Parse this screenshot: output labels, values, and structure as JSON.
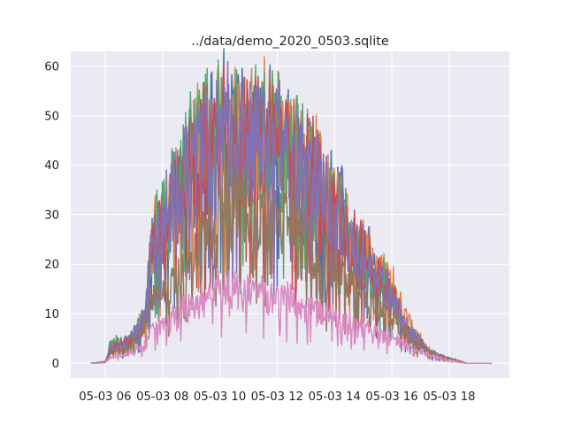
{
  "chart_data": {
    "type": "line",
    "title": "../data/demo_2020_0503.sqlite",
    "xlabel": "",
    "ylabel": "",
    "x_unit": "hour of 2020-05-03",
    "xlim": [
      4.8,
      20.1
    ],
    "ylim": [
      -3,
      63
    ],
    "grid": true,
    "background": "#eaeaf2",
    "x_ticks": [
      {
        "value": 6,
        "label": "05-03 06"
      },
      {
        "value": 8,
        "label": "05-03 08"
      },
      {
        "value": 10,
        "label": "05-03 10"
      },
      {
        "value": 12,
        "label": "05-03 12"
      },
      {
        "value": 14,
        "label": "05-03 14"
      },
      {
        "value": 16,
        "label": "05-03 16"
      },
      {
        "value": 18,
        "label": "05-03 18"
      }
    ],
    "y_ticks": [
      0,
      10,
      20,
      30,
      40,
      50,
      60
    ],
    "series": [
      {
        "color": "#4c72b0",
        "envelope": [
          [
            5.5,
            0
          ],
          [
            6,
            0.3
          ],
          [
            6.1,
            2
          ],
          [
            6.2,
            4.5
          ],
          [
            6.6,
            4.8
          ],
          [
            7,
            7
          ],
          [
            7.4,
            12
          ],
          [
            7.6,
            29
          ],
          [
            7.8,
            35
          ],
          [
            8.1,
            37
          ],
          [
            8.4,
            44
          ],
          [
            8.8,
            50
          ],
          [
            9.2,
            54
          ],
          [
            9.6,
            57
          ],
          [
            9.8,
            58
          ],
          [
            10.2,
            60
          ],
          [
            10.6,
            58
          ],
          [
            11.2,
            58
          ],
          [
            11.6,
            57
          ],
          [
            12,
            58
          ],
          [
            12.5,
            55
          ],
          [
            12.9,
            53
          ],
          [
            13.4,
            46
          ],
          [
            13.8,
            41
          ],
          [
            14.2,
            40
          ],
          [
            14.6,
            31
          ],
          [
            15,
            29
          ],
          [
            15.4,
            23
          ],
          [
            15.8,
            20
          ],
          [
            16,
            17
          ],
          [
            16.4,
            10
          ],
          [
            16.8,
            7
          ],
          [
            17.2,
            3.5
          ],
          [
            17.6,
            2
          ],
          [
            18,
            1.1
          ],
          [
            18.4,
            0.4
          ],
          [
            18.6,
            0
          ],
          [
            19,
            0
          ],
          [
            19.5,
            0
          ]
        ],
        "floor": 0.45,
        "jitter": 0.15,
        "seed": 11
      },
      {
        "color": "#dd8452",
        "envelope": [
          [
            5.5,
            0
          ],
          [
            6,
            0.3
          ],
          [
            6.1,
            2
          ],
          [
            6.2,
            4.2
          ],
          [
            6.6,
            4.6
          ],
          [
            7,
            7
          ],
          [
            7.4,
            12
          ],
          [
            7.6,
            30
          ],
          [
            7.8,
            34
          ],
          [
            8.1,
            36
          ],
          [
            8.4,
            43
          ],
          [
            8.8,
            49
          ],
          [
            9.2,
            55
          ],
          [
            9.6,
            58
          ],
          [
            9.8,
            59
          ],
          [
            10.2,
            60
          ],
          [
            10.6,
            59
          ],
          [
            11.2,
            58
          ],
          [
            11.6,
            60
          ],
          [
            12,
            58
          ],
          [
            12.5,
            55
          ],
          [
            12.9,
            51
          ],
          [
            13.4,
            49
          ],
          [
            13.8,
            42
          ],
          [
            14.2,
            40
          ],
          [
            14.6,
            32
          ],
          [
            15,
            30
          ],
          [
            15.4,
            24
          ],
          [
            15.8,
            22
          ],
          [
            16,
            21
          ],
          [
            16.4,
            13
          ],
          [
            16.8,
            8
          ],
          [
            17.2,
            3.8
          ],
          [
            17.6,
            2.2
          ],
          [
            18,
            1.2
          ],
          [
            18.4,
            0.5
          ],
          [
            18.6,
            0
          ],
          [
            19,
            0
          ],
          [
            19.5,
            0
          ]
        ],
        "floor": 0.5,
        "jitter": 0.13,
        "seed": 23
      },
      {
        "color": "#55a868",
        "envelope": [
          [
            5.5,
            0
          ],
          [
            6,
            0.4
          ],
          [
            6.1,
            2.2
          ],
          [
            6.2,
            6
          ],
          [
            6.6,
            5
          ],
          [
            7,
            7
          ],
          [
            7.4,
            12
          ],
          [
            7.6,
            31
          ],
          [
            7.8,
            35
          ],
          [
            8.1,
            36
          ],
          [
            8.4,
            45
          ],
          [
            8.8,
            51
          ],
          [
            9.2,
            56
          ],
          [
            9.6,
            60
          ],
          [
            9.8,
            60
          ],
          [
            10.2,
            59
          ],
          [
            10.6,
            58
          ],
          [
            11.2,
            57
          ],
          [
            11.6,
            58
          ],
          [
            12,
            57
          ],
          [
            12.5,
            54
          ],
          [
            12.9,
            52
          ],
          [
            13.4,
            46
          ],
          [
            13.8,
            40
          ],
          [
            14.2,
            39
          ],
          [
            14.6,
            30
          ],
          [
            15,
            28
          ],
          [
            15.4,
            23
          ],
          [
            15.8,
            20
          ],
          [
            16,
            17
          ],
          [
            16.4,
            10
          ],
          [
            16.8,
            7
          ],
          [
            17.2,
            3.5
          ],
          [
            17.6,
            2
          ],
          [
            18,
            1.1
          ],
          [
            18.4,
            0.4
          ],
          [
            18.6,
            0
          ],
          [
            19,
            0
          ],
          [
            19.5,
            0
          ]
        ],
        "floor": 0.45,
        "jitter": 0.15,
        "seed": 37
      },
      {
        "color": "#c44e52",
        "envelope": [
          [
            5.5,
            0
          ],
          [
            6,
            0.3
          ],
          [
            6.1,
            2
          ],
          [
            6.2,
            4.4
          ],
          [
            6.6,
            4.7
          ],
          [
            7,
            7
          ],
          [
            7.4,
            11
          ],
          [
            7.6,
            28
          ],
          [
            7.8,
            34
          ],
          [
            8.1,
            35
          ],
          [
            8.4,
            43
          ],
          [
            8.8,
            49
          ],
          [
            9.2,
            54
          ],
          [
            9.6,
            57
          ],
          [
            9.8,
            58
          ],
          [
            10.2,
            59
          ],
          [
            10.6,
            57
          ],
          [
            11.2,
            57
          ],
          [
            11.6,
            56
          ],
          [
            12,
            57
          ],
          [
            12.5,
            54
          ],
          [
            12.9,
            51
          ],
          [
            13.4,
            45
          ],
          [
            13.8,
            40
          ],
          [
            14.2,
            38
          ],
          [
            14.6,
            30
          ],
          [
            15,
            28
          ],
          [
            15.4,
            22
          ],
          [
            15.8,
            20
          ],
          [
            16,
            17
          ],
          [
            16.4,
            10
          ],
          [
            16.8,
            7
          ],
          [
            17.2,
            3.5
          ],
          [
            17.6,
            2
          ],
          [
            18,
            1.1
          ],
          [
            18.4,
            0.4
          ],
          [
            18.6,
            0
          ],
          [
            19,
            0
          ],
          [
            19.5,
            0
          ]
        ],
        "floor": 0.45,
        "jitter": 0.15,
        "seed": 41
      },
      {
        "color": "#8172b3",
        "envelope": [
          [
            5.5,
            0
          ],
          [
            6,
            0.3
          ],
          [
            6.1,
            2
          ],
          [
            6.2,
            4.3
          ],
          [
            6.6,
            4.6
          ],
          [
            7,
            7
          ],
          [
            7.4,
            12
          ],
          [
            7.6,
            29
          ],
          [
            7.8,
            36
          ],
          [
            8.1,
            37
          ],
          [
            8.4,
            44
          ],
          [
            8.8,
            50
          ],
          [
            9.2,
            55
          ],
          [
            9.6,
            57
          ],
          [
            9.8,
            58
          ],
          [
            10.2,
            60
          ],
          [
            10.6,
            58
          ],
          [
            11.2,
            57
          ],
          [
            11.6,
            57
          ],
          [
            12,
            57
          ],
          [
            12.5,
            55
          ],
          [
            12.9,
            52
          ],
          [
            13.4,
            46
          ],
          [
            13.8,
            41
          ],
          [
            14.2,
            39
          ],
          [
            14.6,
            30
          ],
          [
            15,
            28
          ],
          [
            15.4,
            22
          ],
          [
            15.8,
            20
          ],
          [
            16,
            17
          ],
          [
            16.4,
            10
          ],
          [
            16.8,
            7
          ],
          [
            17.2,
            3.5
          ],
          [
            17.6,
            2
          ],
          [
            18,
            1.1
          ],
          [
            18.4,
            0.4
          ],
          [
            18.6,
            0
          ],
          [
            19,
            0
          ],
          [
            19.5,
            0
          ]
        ],
        "floor": 0.45,
        "jitter": 0.15,
        "seed": 53
      },
      {
        "color": "#937860",
        "envelope": [
          [
            5.5,
            0
          ],
          [
            6,
            0.2
          ],
          [
            6.1,
            1.5
          ],
          [
            6.2,
            2.8
          ],
          [
            6.6,
            3.2
          ],
          [
            7,
            5
          ],
          [
            7.4,
            9
          ],
          [
            7.6,
            16
          ],
          [
            7.8,
            16
          ],
          [
            8.1,
            18
          ],
          [
            8.4,
            22
          ],
          [
            8.8,
            25
          ],
          [
            9.2,
            30
          ],
          [
            9.6,
            33
          ],
          [
            9.8,
            36
          ],
          [
            10.2,
            40
          ],
          [
            10.6,
            39
          ],
          [
            11.2,
            37
          ],
          [
            11.6,
            36
          ],
          [
            12,
            35
          ],
          [
            12.5,
            34
          ],
          [
            12.9,
            30
          ],
          [
            13.4,
            28
          ],
          [
            13.8,
            24
          ],
          [
            14.2,
            22
          ],
          [
            14.6,
            19
          ],
          [
            15,
            18
          ],
          [
            15.4,
            15
          ],
          [
            15.8,
            13
          ],
          [
            16,
            12
          ],
          [
            16.4,
            8
          ],
          [
            16.8,
            5
          ],
          [
            17.2,
            3.2
          ],
          [
            17.6,
            2
          ],
          [
            18,
            1.2
          ],
          [
            18.4,
            0.5
          ],
          [
            18.6,
            0
          ],
          [
            19,
            0
          ],
          [
            19.5,
            0
          ]
        ],
        "floor": 0.55,
        "jitter": 0.12,
        "seed": 67
      },
      {
        "color": "#da8bc3",
        "envelope": [
          [
            5.5,
            0
          ],
          [
            6,
            0.1
          ],
          [
            6.1,
            1
          ],
          [
            6.2,
            1.5
          ],
          [
            6.6,
            2
          ],
          [
            7,
            3
          ],
          [
            7.4,
            5
          ],
          [
            7.6,
            8
          ],
          [
            7.8,
            9
          ],
          [
            8.1,
            10
          ],
          [
            8.4,
            12
          ],
          [
            8.8,
            14
          ],
          [
            9.2,
            15
          ],
          [
            9.6,
            17
          ],
          [
            9.8,
            18
          ],
          [
            10.2,
            19
          ],
          [
            10.6,
            18
          ],
          [
            11.2,
            18
          ],
          [
            11.6,
            17
          ],
          [
            12,
            16
          ],
          [
            12.5,
            16
          ],
          [
            12.9,
            14
          ],
          [
            13.4,
            13
          ],
          [
            13.8,
            12
          ],
          [
            14.2,
            11
          ],
          [
            14.6,
            10
          ],
          [
            15,
            9
          ],
          [
            15.4,
            8
          ],
          [
            15.8,
            7
          ],
          [
            16,
            6.5
          ],
          [
            16.4,
            5
          ],
          [
            16.8,
            3.5
          ],
          [
            17.2,
            2.5
          ],
          [
            17.6,
            1.5
          ],
          [
            18,
            0.8
          ],
          [
            18.4,
            0.2
          ],
          [
            18.6,
            0
          ],
          [
            19,
            0
          ],
          [
            19.5,
            0
          ]
        ],
        "floor": 0.5,
        "jitter": 0.14,
        "seed": 79
      }
    ]
  }
}
